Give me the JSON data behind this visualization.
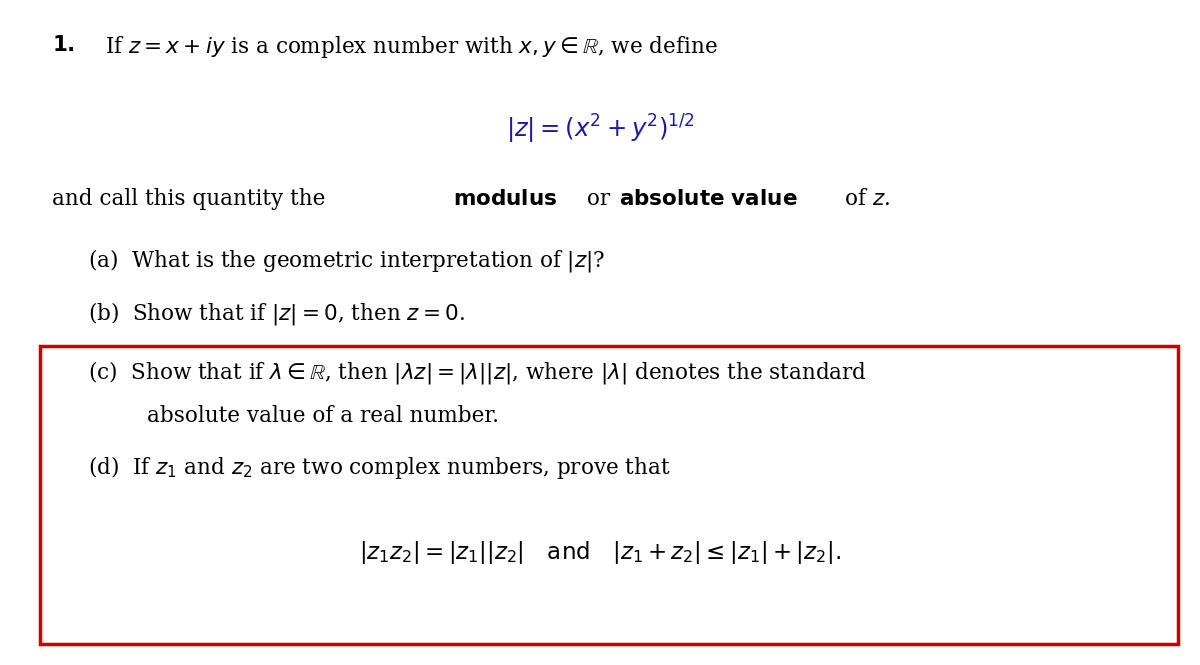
{
  "background_color": "#ffffff",
  "text_color": "#000000",
  "red_box_color": "#cc0000",
  "figsize": [
    12.0,
    6.65
  ],
  "dpi": 100,
  "line1": "\\textbf{1.}\\; \\text{If } z = x + iy \\text{ is a complex number with } x, y \\in \\mathbb{R}, \\text{ we define}",
  "formula": "|z| = (x^2 + y^2)^{1/2}",
  "line2": "\\text{and call this quantity the \\textbf{modulus} or \\textbf{absolute value} of } z\\text{.}",
  "part_a": "\\text{(a)\\; What is the geometric interpretation of } |z|\\text{?}",
  "part_b": "\\text{(b)\\; Show that if } |z| = 0, \\text{ then } z = 0\\text{.}",
  "part_c_1": "\\text{(c)\\; Show that if } \\lambda \\in \\mathbb{R}, \\text{ then } |\\lambda z| = |\\lambda||z|, \\text{ where } |\\lambda| \\text{ denotes the standard}",
  "part_c_2": "\\text{absolute value of a real number.}",
  "part_d_1": "\\text{(d)\\; If } z_1 \\text{ and } z_2 \\text{ are two complex numbers, prove that}",
  "part_d_formula": "|z_1 z_2| = |z_1||z_2| \\quad \\text{and} \\quad |z_1 + z_2| \\leq |z_1| + |z_2|\\text{.}"
}
